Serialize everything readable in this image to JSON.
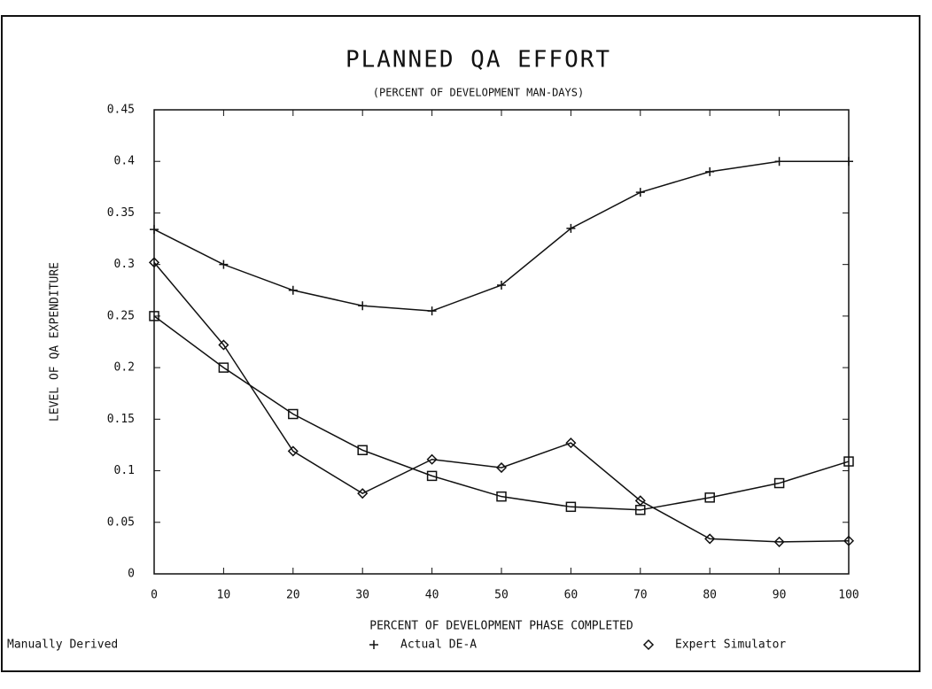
{
  "chart_data": {
    "type": "line",
    "title": "PLANNED QA EFFORT",
    "subtitle": "(PERCENT OF DEVELOPMENT MAN-DAYS)",
    "xlabel": "PERCENT OF DEVELOPMENT PHASE COMPLETED",
    "ylabel": "LEVEL OF QA EXPENDITURE",
    "x": [
      0,
      10,
      20,
      30,
      40,
      50,
      60,
      70,
      80,
      90,
      100
    ],
    "series": [
      {
        "name": "Manually Derived",
        "color": "#111111",
        "marker": "square",
        "values": [
          0.25,
          0.2,
          0.155,
          0.12,
          0.095,
          0.075,
          0.065,
          0.062,
          0.074,
          0.088,
          0.109
        ]
      },
      {
        "name": "Actual DE-A",
        "color": "#111111",
        "marker": "plus",
        "values": [
          0.334,
          0.3,
          0.275,
          0.26,
          0.255,
          0.28,
          0.335,
          0.37,
          0.39,
          0.4,
          0.4
        ]
      },
      {
        "name": "Expert Simulator",
        "color": "#111111",
        "marker": "diamond",
        "values": [
          0.302,
          0.222,
          0.119,
          0.078,
          0.111,
          0.103,
          0.127,
          0.071,
          0.034,
          0.031,
          0.032
        ]
      }
    ],
    "xlim": [
      0,
      100
    ],
    "xticks": [
      0,
      10,
      20,
      30,
      40,
      50,
      60,
      70,
      80,
      90,
      100
    ],
    "ylim": [
      0,
      0.45
    ],
    "yticks": [
      0,
      0.05,
      0.1,
      0.15,
      0.2,
      0.25,
      0.3,
      0.35,
      0.4,
      0.45
    ],
    "grid": false,
    "legend": "bottom"
  }
}
